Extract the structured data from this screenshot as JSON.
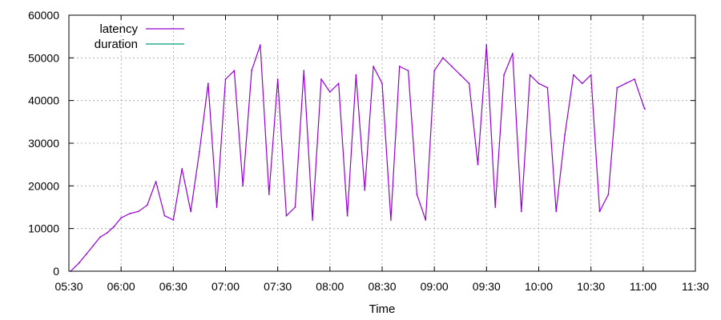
{
  "chart_data": {
    "type": "line",
    "title": "",
    "xlabel": "Time",
    "ylabel": "",
    "xlim": [
      "05:30",
      "11:30"
    ],
    "ylim": [
      0,
      60000
    ],
    "grid": true,
    "legend_position": "top-left",
    "x_tick_labels": [
      "05:30",
      "06:00",
      "06:30",
      "07:00",
      "07:30",
      "08:00",
      "08:30",
      "09:00",
      "09:30",
      "10:00",
      "10:30",
      "11:00",
      "11:30"
    ],
    "y_tick_labels": [
      "0",
      "10000",
      "20000",
      "30000",
      "40000",
      "50000",
      "60000"
    ],
    "series": [
      {
        "name": "latency",
        "color": "#9400d3",
        "x": [
          "05:31",
          "05:36",
          "05:40",
          "05:44",
          "05:48",
          "05:52",
          "05:56",
          "06:00",
          "06:05",
          "06:10",
          "06:15",
          "06:20",
          "06:25",
          "06:30",
          "06:35",
          "06:40",
          "06:45",
          "06:50",
          "06:55",
          "07:00",
          "07:05",
          "07:10",
          "07:15",
          "07:20",
          "07:25",
          "07:30",
          "07:35",
          "07:40",
          "07:45",
          "07:50",
          "07:55",
          "08:00",
          "08:05",
          "08:10",
          "08:15",
          "08:20",
          "08:25",
          "08:30",
          "08:35",
          "08:40",
          "08:45",
          "08:50",
          "08:55",
          "09:00",
          "09:05",
          "09:10",
          "09:15",
          "09:20",
          "09:25",
          "09:30",
          "09:35",
          "09:40",
          "09:45",
          "09:50",
          "09:55",
          "10:00",
          "10:05",
          "10:10",
          "10:15",
          "10:20",
          "10:25",
          "10:30",
          "10:35",
          "10:40",
          "10:45",
          "10:50",
          "10:55",
          "11:00",
          "11:01"
        ],
        "values": [
          0,
          2000,
          4000,
          6000,
          8000,
          9000,
          10500,
          12500,
          13500,
          14000,
          15500,
          21000,
          13000,
          12000,
          24000,
          14000,
          28000,
          44000,
          15000,
          45000,
          47000,
          20000,
          47000,
          53000,
          18000,
          45000,
          13000,
          15000,
          47000,
          12000,
          45000,
          42000,
          44000,
          13000,
          46000,
          19000,
          48000,
          44000,
          12000,
          48000,
          47000,
          18000,
          12000,
          47000,
          50000,
          48000,
          46000,
          44000,
          25000,
          53000,
          15000,
          46000,
          51000,
          14000,
          46000,
          44000,
          43000,
          14000,
          32000,
          46000,
          44000,
          46000,
          14000,
          18000,
          43000,
          44000,
          45000,
          39000,
          38000
        ]
      },
      {
        "name": "duration",
        "color": "#009e73",
        "x": [],
        "values": []
      }
    ]
  }
}
